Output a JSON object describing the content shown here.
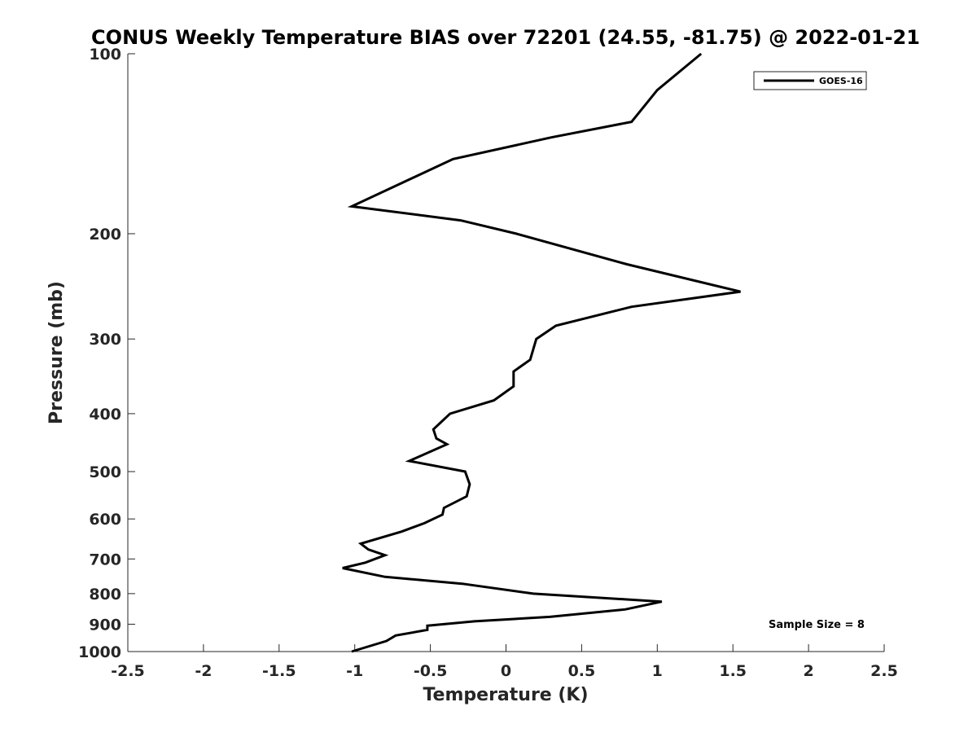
{
  "chart_data": {
    "type": "line",
    "title": "CONUS Weekly Temperature BIAS over 72201 (24.55, -81.75) @ 2022-01-21",
    "xlabel": "Temperature (K)",
    "ylabel": "Pressure (mb)",
    "xlim": [
      -2.5,
      2.5
    ],
    "ylim": [
      1000,
      100
    ],
    "yscale": "log",
    "y_reversed": true,
    "xticks": [
      -2.5,
      -2,
      -1.5,
      -1,
      -0.5,
      0,
      0.5,
      1,
      1.5,
      2,
      2.5
    ],
    "xtick_labels": [
      "-2.5",
      "-2",
      "-1.5",
      "-1",
      "-0.5",
      "0",
      "0.5",
      "1",
      "1.5",
      "2",
      "2.5"
    ],
    "yticks": [
      100,
      200,
      300,
      400,
      500,
      600,
      700,
      800,
      900,
      1000
    ],
    "ytick_labels": [
      "100",
      "200",
      "300",
      "400",
      "500",
      "600",
      "700",
      "800",
      "900",
      "1000"
    ],
    "grid": false,
    "legend_position": "top-right",
    "series": [
      {
        "name": "GOES-16",
        "color": "#000000",
        "points": [
          {
            "x": 1.29,
            "y": 100
          },
          {
            "x": 1.0,
            "y": 115
          },
          {
            "x": 0.83,
            "y": 130
          },
          {
            "x": 0.3,
            "y": 138
          },
          {
            "x": -0.35,
            "y": 150
          },
          {
            "x": -1.02,
            "y": 180
          },
          {
            "x": -0.3,
            "y": 190
          },
          {
            "x": 0.07,
            "y": 200
          },
          {
            "x": 0.8,
            "y": 225
          },
          {
            "x": 1.55,
            "y": 250
          },
          {
            "x": 0.83,
            "y": 265
          },
          {
            "x": 0.33,
            "y": 285
          },
          {
            "x": 0.2,
            "y": 300
          },
          {
            "x": 0.16,
            "y": 325
          },
          {
            "x": 0.05,
            "y": 340
          },
          {
            "x": 0.05,
            "y": 360
          },
          {
            "x": -0.08,
            "y": 380
          },
          {
            "x": -0.37,
            "y": 400
          },
          {
            "x": -0.48,
            "y": 425
          },
          {
            "x": -0.46,
            "y": 440
          },
          {
            "x": -0.39,
            "y": 450
          },
          {
            "x": -0.64,
            "y": 480
          },
          {
            "x": -0.27,
            "y": 500
          },
          {
            "x": -0.24,
            "y": 525
          },
          {
            "x": -0.26,
            "y": 550
          },
          {
            "x": -0.41,
            "y": 575
          },
          {
            "x": -0.42,
            "y": 590
          },
          {
            "x": -0.54,
            "y": 610
          },
          {
            "x": -0.69,
            "y": 630
          },
          {
            "x": -0.96,
            "y": 660
          },
          {
            "x": -0.91,
            "y": 675
          },
          {
            "x": -0.8,
            "y": 690
          },
          {
            "x": -0.93,
            "y": 710
          },
          {
            "x": -1.08,
            "y": 725
          },
          {
            "x": -0.8,
            "y": 750
          },
          {
            "x": -0.29,
            "y": 770
          },
          {
            "x": 0.18,
            "y": 800
          },
          {
            "x": 1.03,
            "y": 825
          },
          {
            "x": 0.79,
            "y": 850
          },
          {
            "x": 0.29,
            "y": 875
          },
          {
            "x": -0.21,
            "y": 890
          },
          {
            "x": -0.52,
            "y": 905
          },
          {
            "x": -0.52,
            "y": 920
          },
          {
            "x": -0.73,
            "y": 940
          },
          {
            "x": -0.79,
            "y": 960
          },
          {
            "x": -1.02,
            "y": 1000
          }
        ]
      }
    ],
    "annotations": [
      "Sample Size = 8"
    ]
  }
}
